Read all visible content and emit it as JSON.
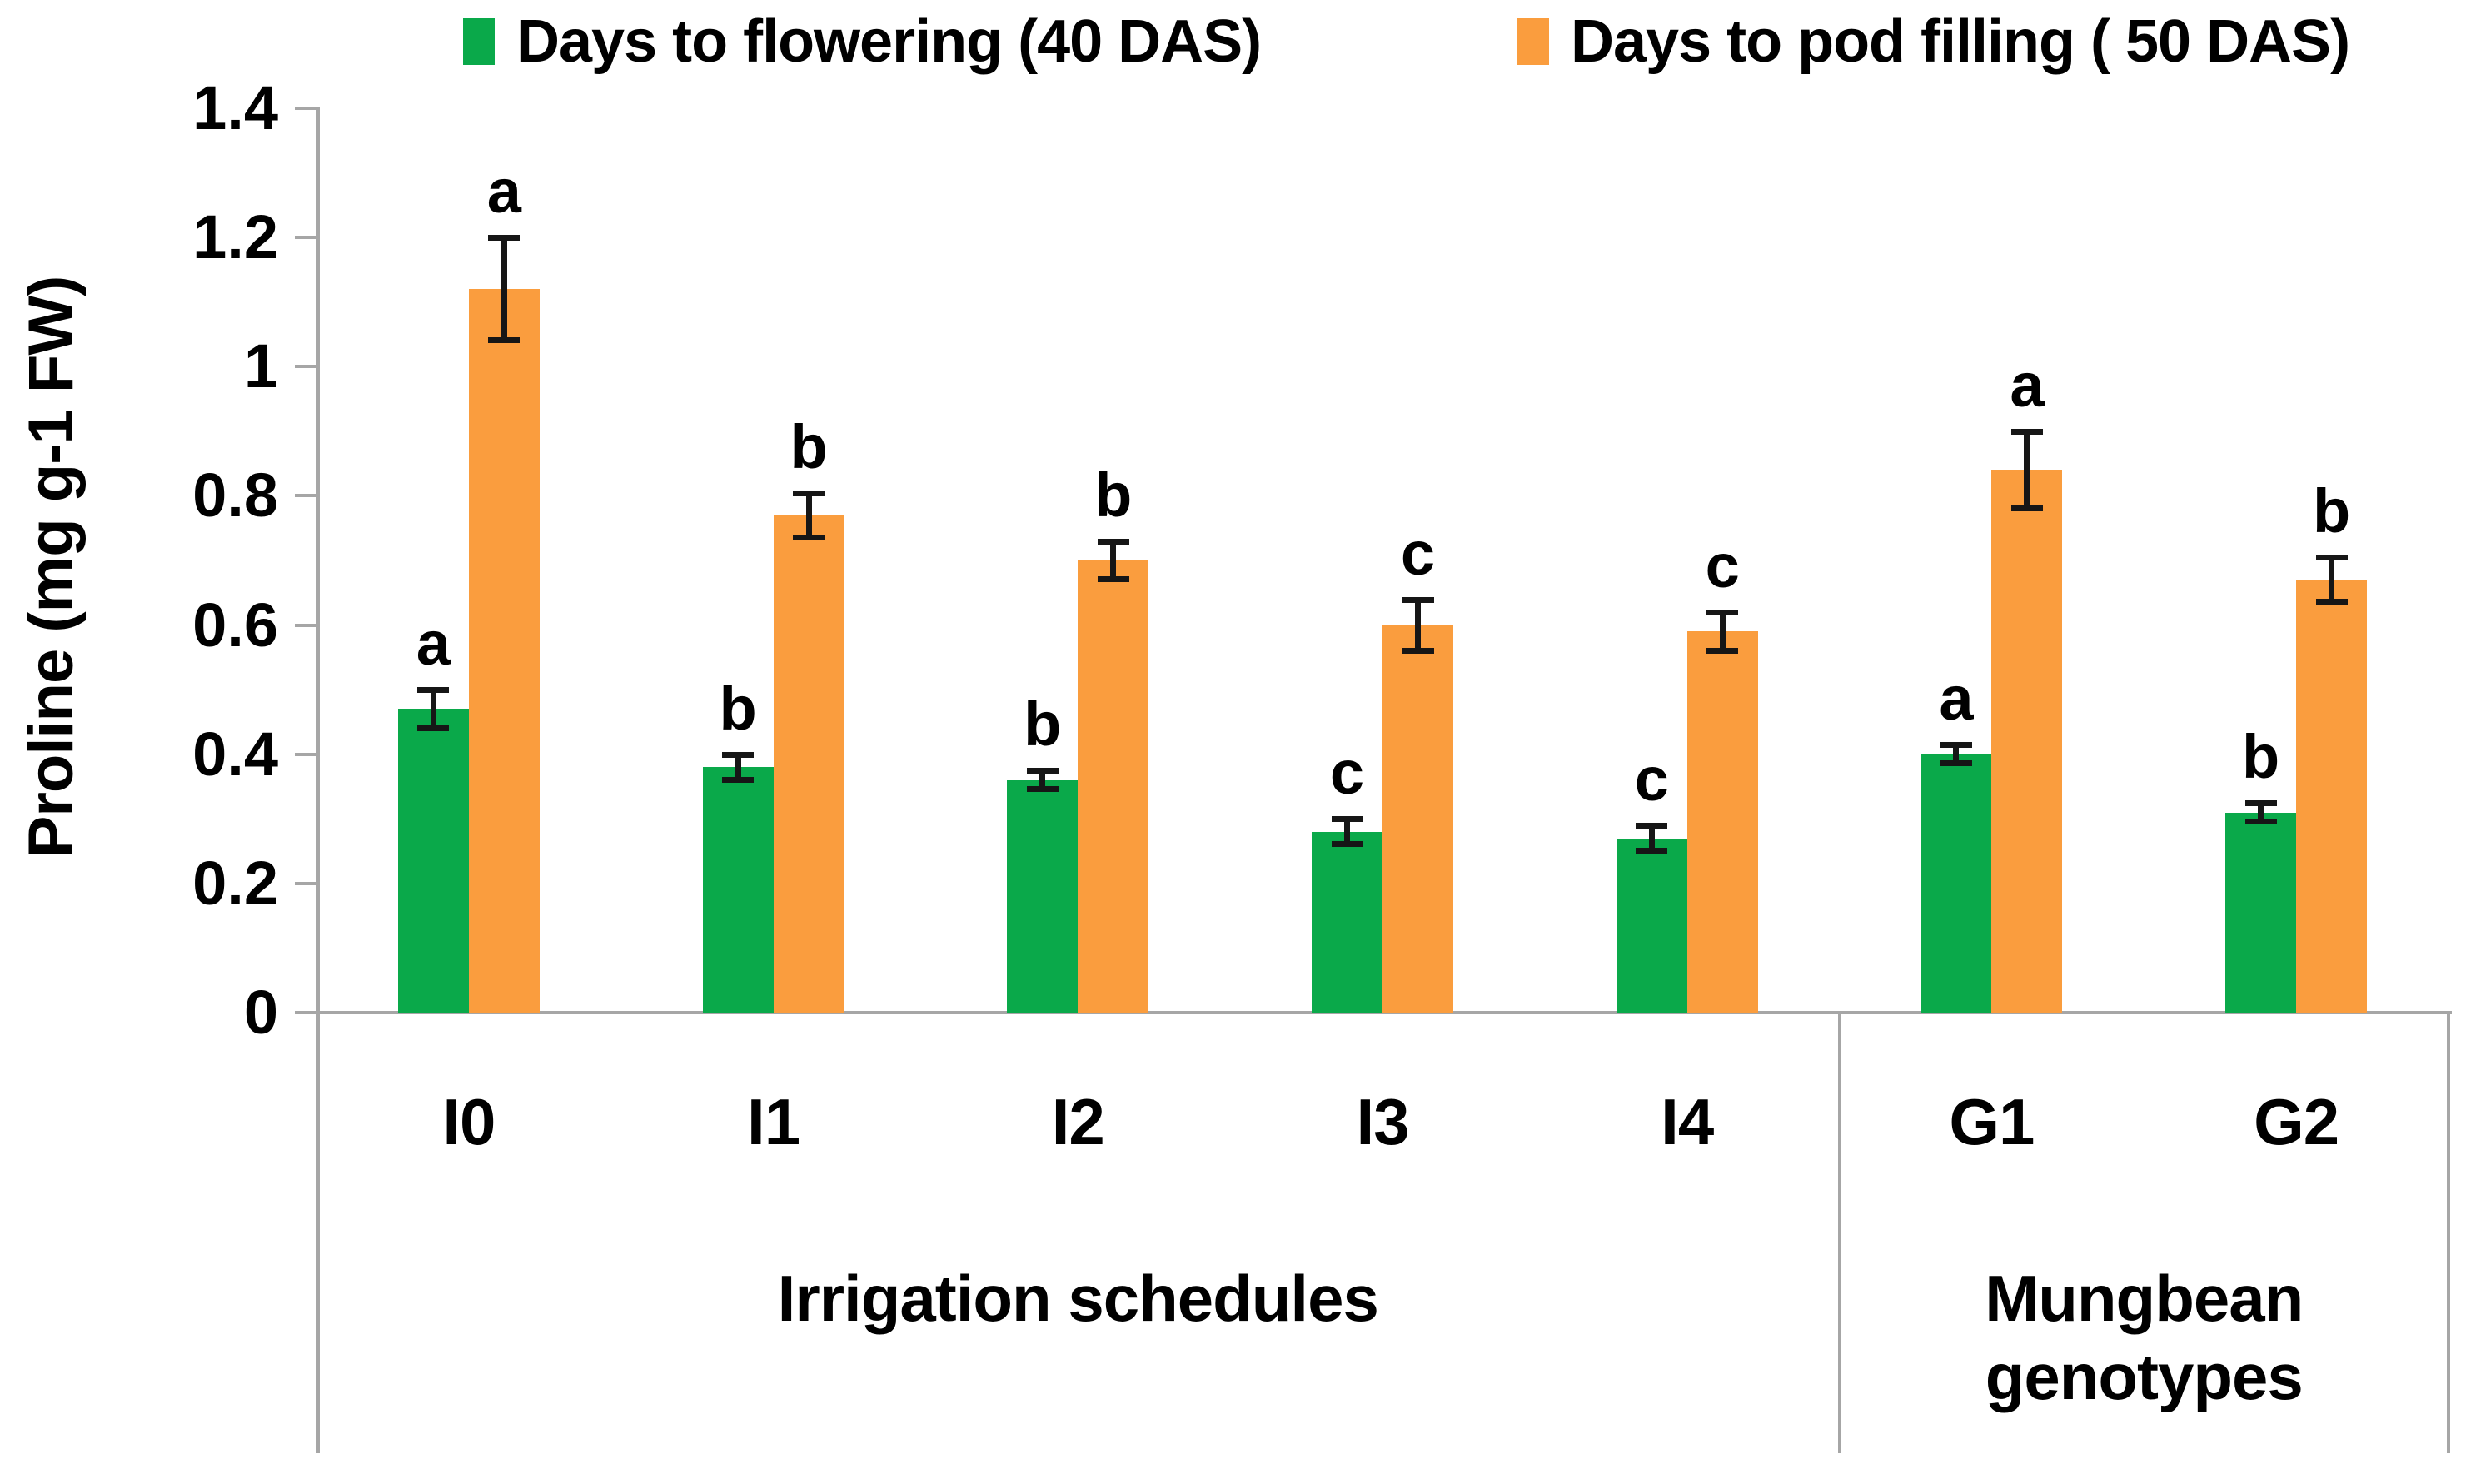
{
  "figure": {
    "background": "#ffffff"
  },
  "legend": {
    "items": [
      {
        "label": "Days to flowering (40 DAS)",
        "color": "#0aa94a"
      },
      {
        "label": "Days to pod filling ( 50 DAS)",
        "color": "#fa9d3e"
      }
    ]
  },
  "chart_data": {
    "type": "bar",
    "title": "",
    "xlabel": "",
    "ylabel": "Proline (mg g-1 FW)",
    "ylim": [
      0,
      1.4
    ],
    "ytick_values": [
      0,
      0.2,
      0.4,
      0.6,
      0.8,
      1,
      1.2,
      1.4
    ],
    "ytick_labels": [
      "0",
      "0.2",
      "0.4",
      "0.6",
      "0.8",
      "1",
      "1.2",
      "1.4"
    ],
    "grid": false,
    "legend_position": "top",
    "categories": [
      "I0",
      "I1",
      "I2",
      "I3",
      "I4",
      "G1",
      "G2"
    ],
    "panels": [
      {
        "label": "Irrigation schedules",
        "label_lines": [
          "Irrigation schedules"
        ],
        "category_indexes": [
          0,
          1,
          2,
          3,
          4
        ]
      },
      {
        "label": "Mungbean genotypes",
        "label_lines": [
          "Mungbean",
          "genotypes"
        ],
        "category_indexes": [
          5,
          6
        ]
      }
    ],
    "series": [
      {
        "name": "Days to flowering (40 DAS)",
        "color": "#0aa94a",
        "values": [
          0.47,
          0.38,
          0.36,
          0.28,
          0.27,
          0.4,
          0.31
        ],
        "errors": [
          0.03,
          0.02,
          0.015,
          0.02,
          0.02,
          0.015,
          0.015
        ],
        "sig_letters": [
          "a",
          "b",
          "b",
          "c",
          "c",
          "a",
          "b"
        ]
      },
      {
        "name": "Days to pod filling ( 50 DAS)",
        "color": "#fa9d3e",
        "values": [
          1.12,
          0.77,
          0.7,
          0.6,
          0.59,
          0.84,
          0.67
        ],
        "errors": [
          0.08,
          0.035,
          0.03,
          0.04,
          0.03,
          0.06,
          0.035
        ],
        "sig_letters": [
          "a",
          "b",
          "b",
          "c",
          "c",
          "a",
          "b"
        ]
      }
    ],
    "axis_color": "#a6a6a6",
    "error_bar_color": "#161616",
    "letter_color": "#000000"
  }
}
